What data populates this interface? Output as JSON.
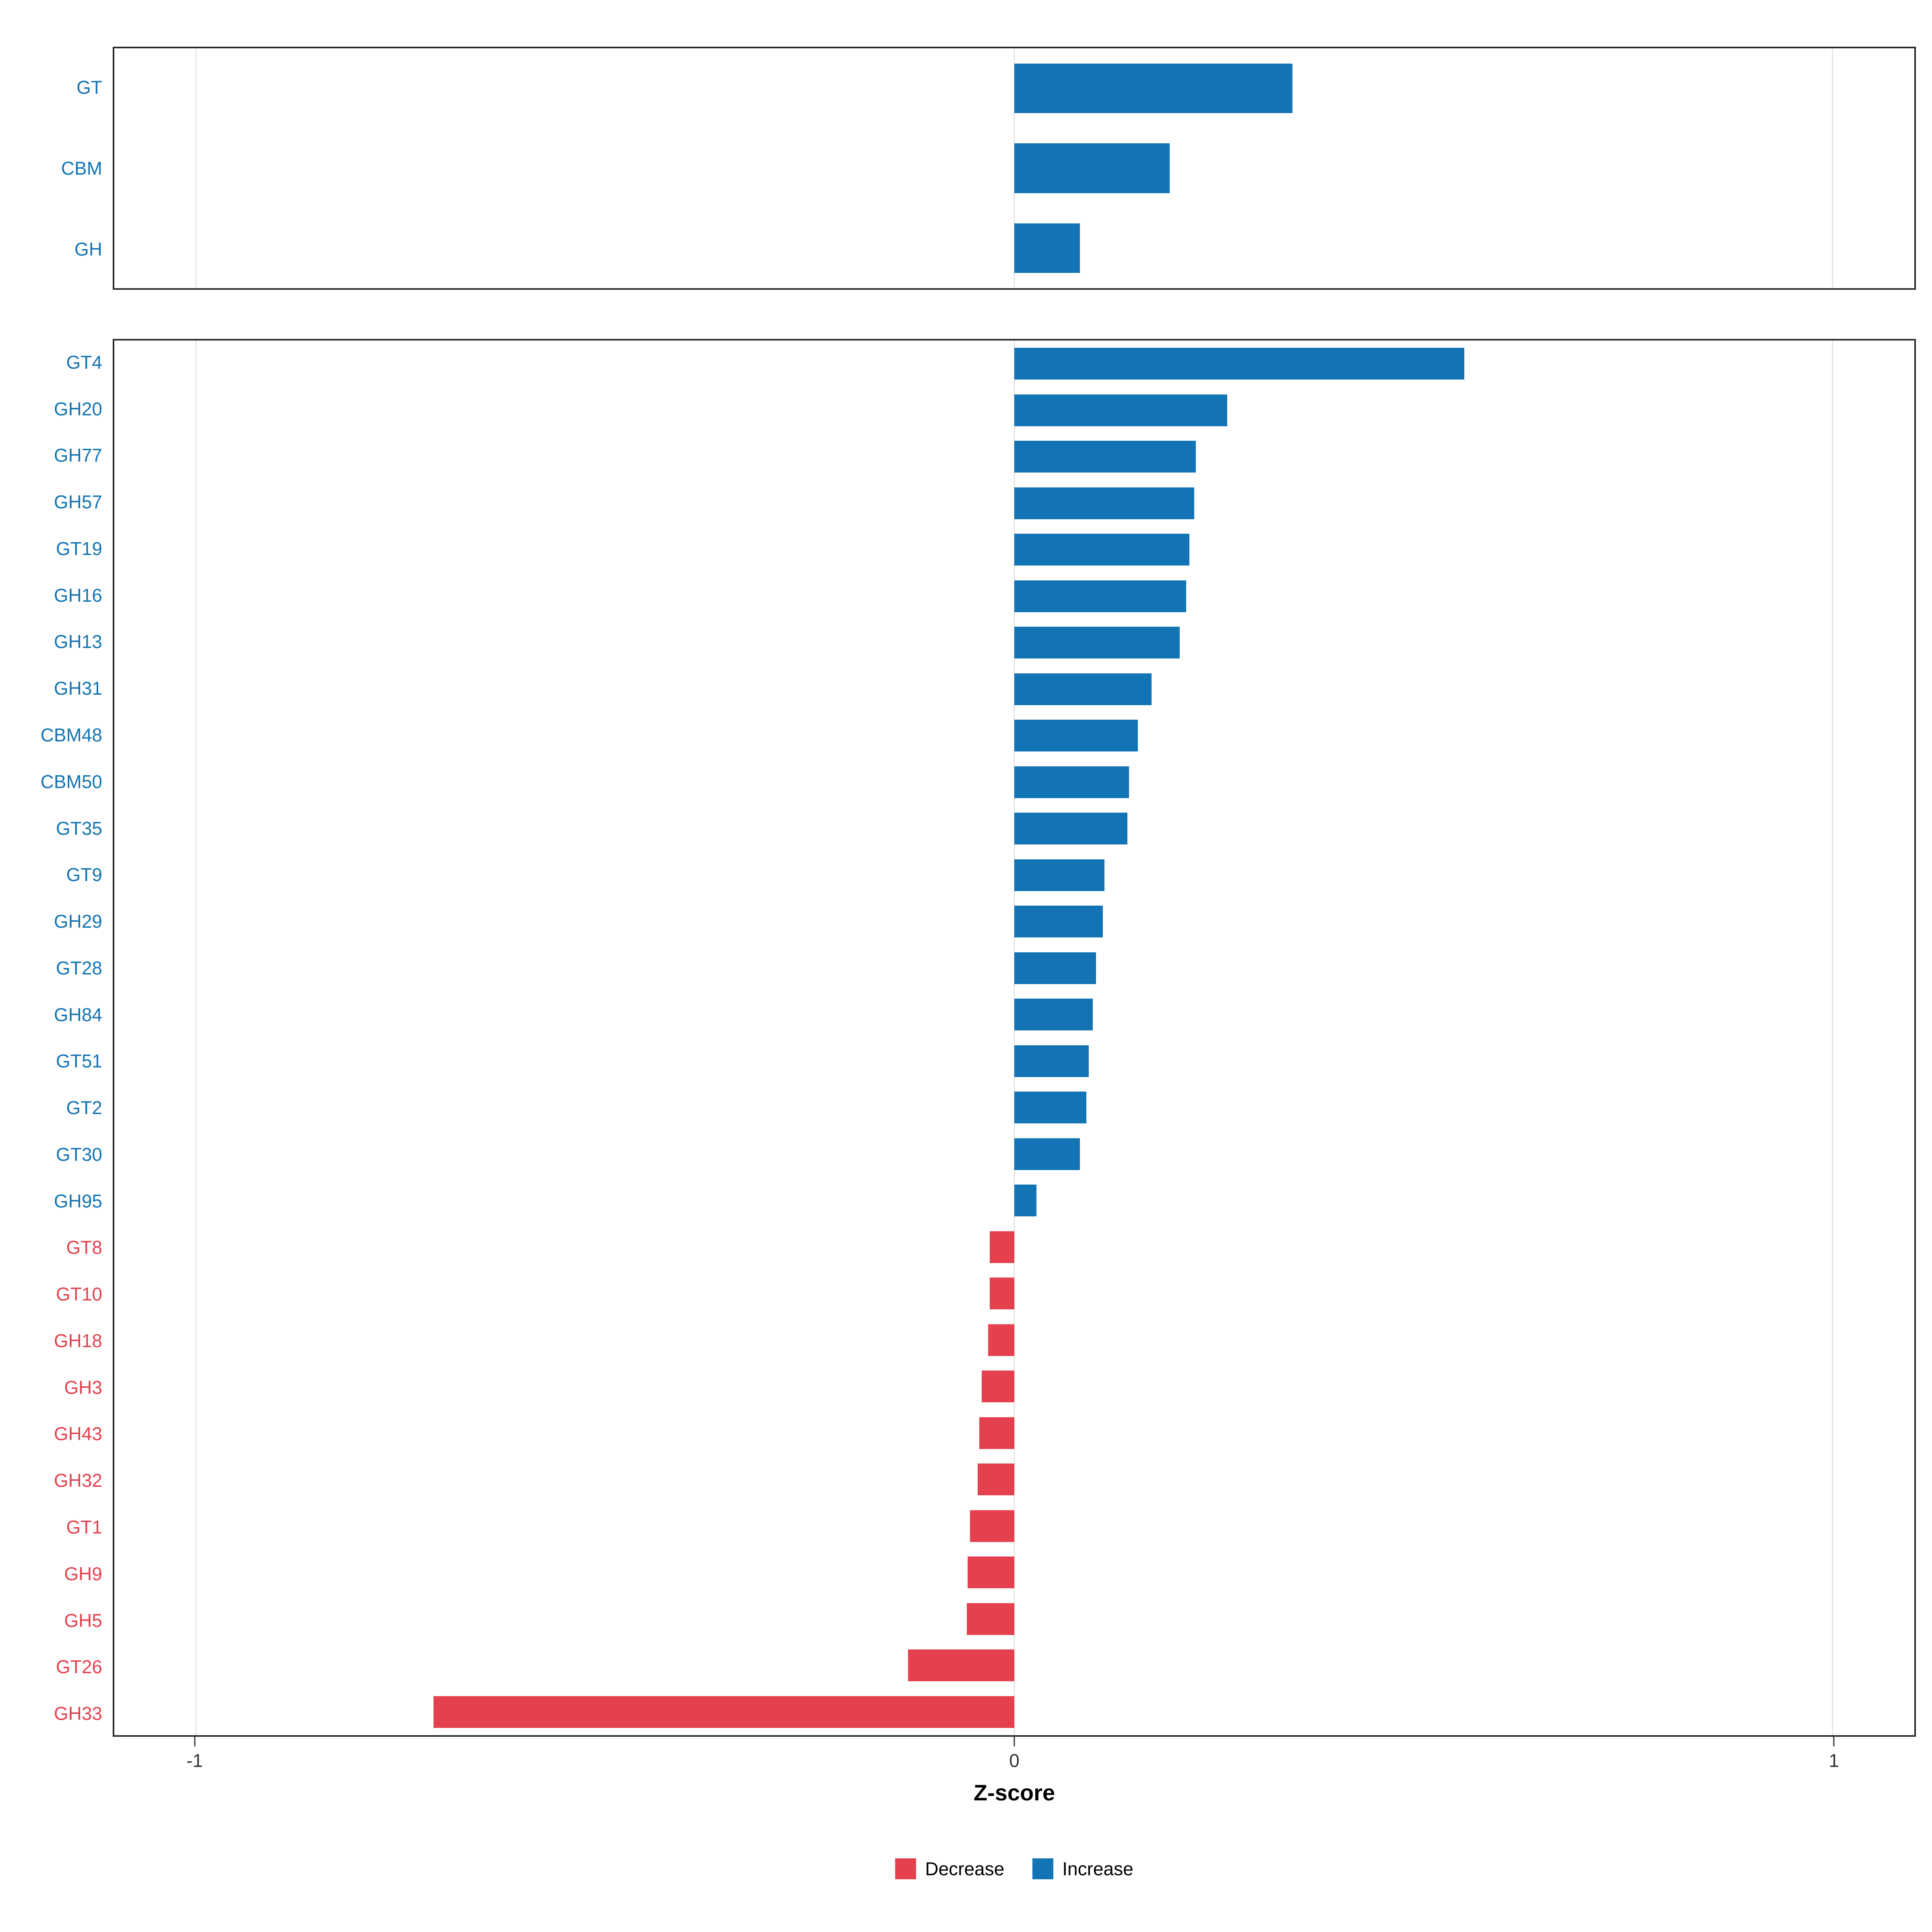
{
  "chart_data": [
    {
      "type": "bar",
      "orientation": "horizontal",
      "panel": "enzyme-classes",
      "categories": [
        "GT",
        "CBM",
        "GH"
      ],
      "values": [
        0.34,
        0.19,
        0.08
      ]
    },
    {
      "type": "bar",
      "orientation": "horizontal",
      "panel": "enzyme-families",
      "categories": [
        "GT4",
        "GH20",
        "GH77",
        "GH57",
        "GT19",
        "GH16",
        "GH13",
        "GH31",
        "CBM48",
        "CBM50",
        "GT35",
        "GT9",
        "GH29",
        "GT28",
        "GH84",
        "GT51",
        "GT2",
        "GT30",
        "GH95",
        "GT8",
        "GT10",
        "GH18",
        "GH3",
        "GH43",
        "GH32",
        "GT1",
        "GH9",
        "GH5",
        "GT26",
        "GH33"
      ],
      "values": [
        0.55,
        0.26,
        0.222,
        0.22,
        0.214,
        0.21,
        0.202,
        0.168,
        0.151,
        0.14,
        0.138,
        0.11,
        0.108,
        0.1,
        0.096,
        0.091,
        0.088,
        0.08,
        0.027,
        -0.03,
        -0.03,
        -0.032,
        -0.04,
        -0.043,
        -0.045,
        -0.054,
        -0.057,
        -0.058,
        -0.13,
        -0.71
      ]
    }
  ],
  "axis": {
    "label": "Z-score",
    "ticks": [
      "-1",
      "0",
      "1"
    ],
    "tick_values": [
      -1,
      0,
      1
    ],
    "xlim": [
      -1.1,
      1.1
    ],
    "grid": "major-vertical"
  },
  "legend": [
    {
      "label": "Decrease",
      "color": "#e4404d"
    },
    {
      "label": "Increase",
      "color": "#1274b4"
    }
  ],
  "colors": {
    "increase": "#1274b4",
    "decrease": "#e4404d",
    "grid": "#e4e4e4",
    "panel_border": "#2b2b2b",
    "tick_text": "#333333"
  }
}
